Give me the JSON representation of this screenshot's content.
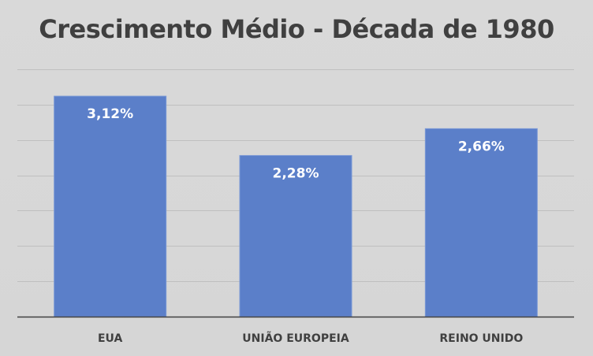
{
  "chart_data": {
    "type": "bar",
    "title": "Crescimento Médio - Década de 1980",
    "categories": [
      "EUA",
      "UNIÃO EUROPEIA",
      "REINO UNIDO"
    ],
    "values": [
      3.12,
      2.28,
      2.66
    ],
    "value_labels": [
      "3,12%",
      "2,28%",
      "2,66%"
    ],
    "ylim": [
      0,
      3.5
    ],
    "grid": true,
    "legend": "none",
    "colors": {
      "bar": "#5B7FC9",
      "bar_edge": "#7a98d6",
      "grid": "#bfbfbf",
      "axis": "#404040",
      "label": "#ffffff",
      "category": "#404040"
    }
  }
}
